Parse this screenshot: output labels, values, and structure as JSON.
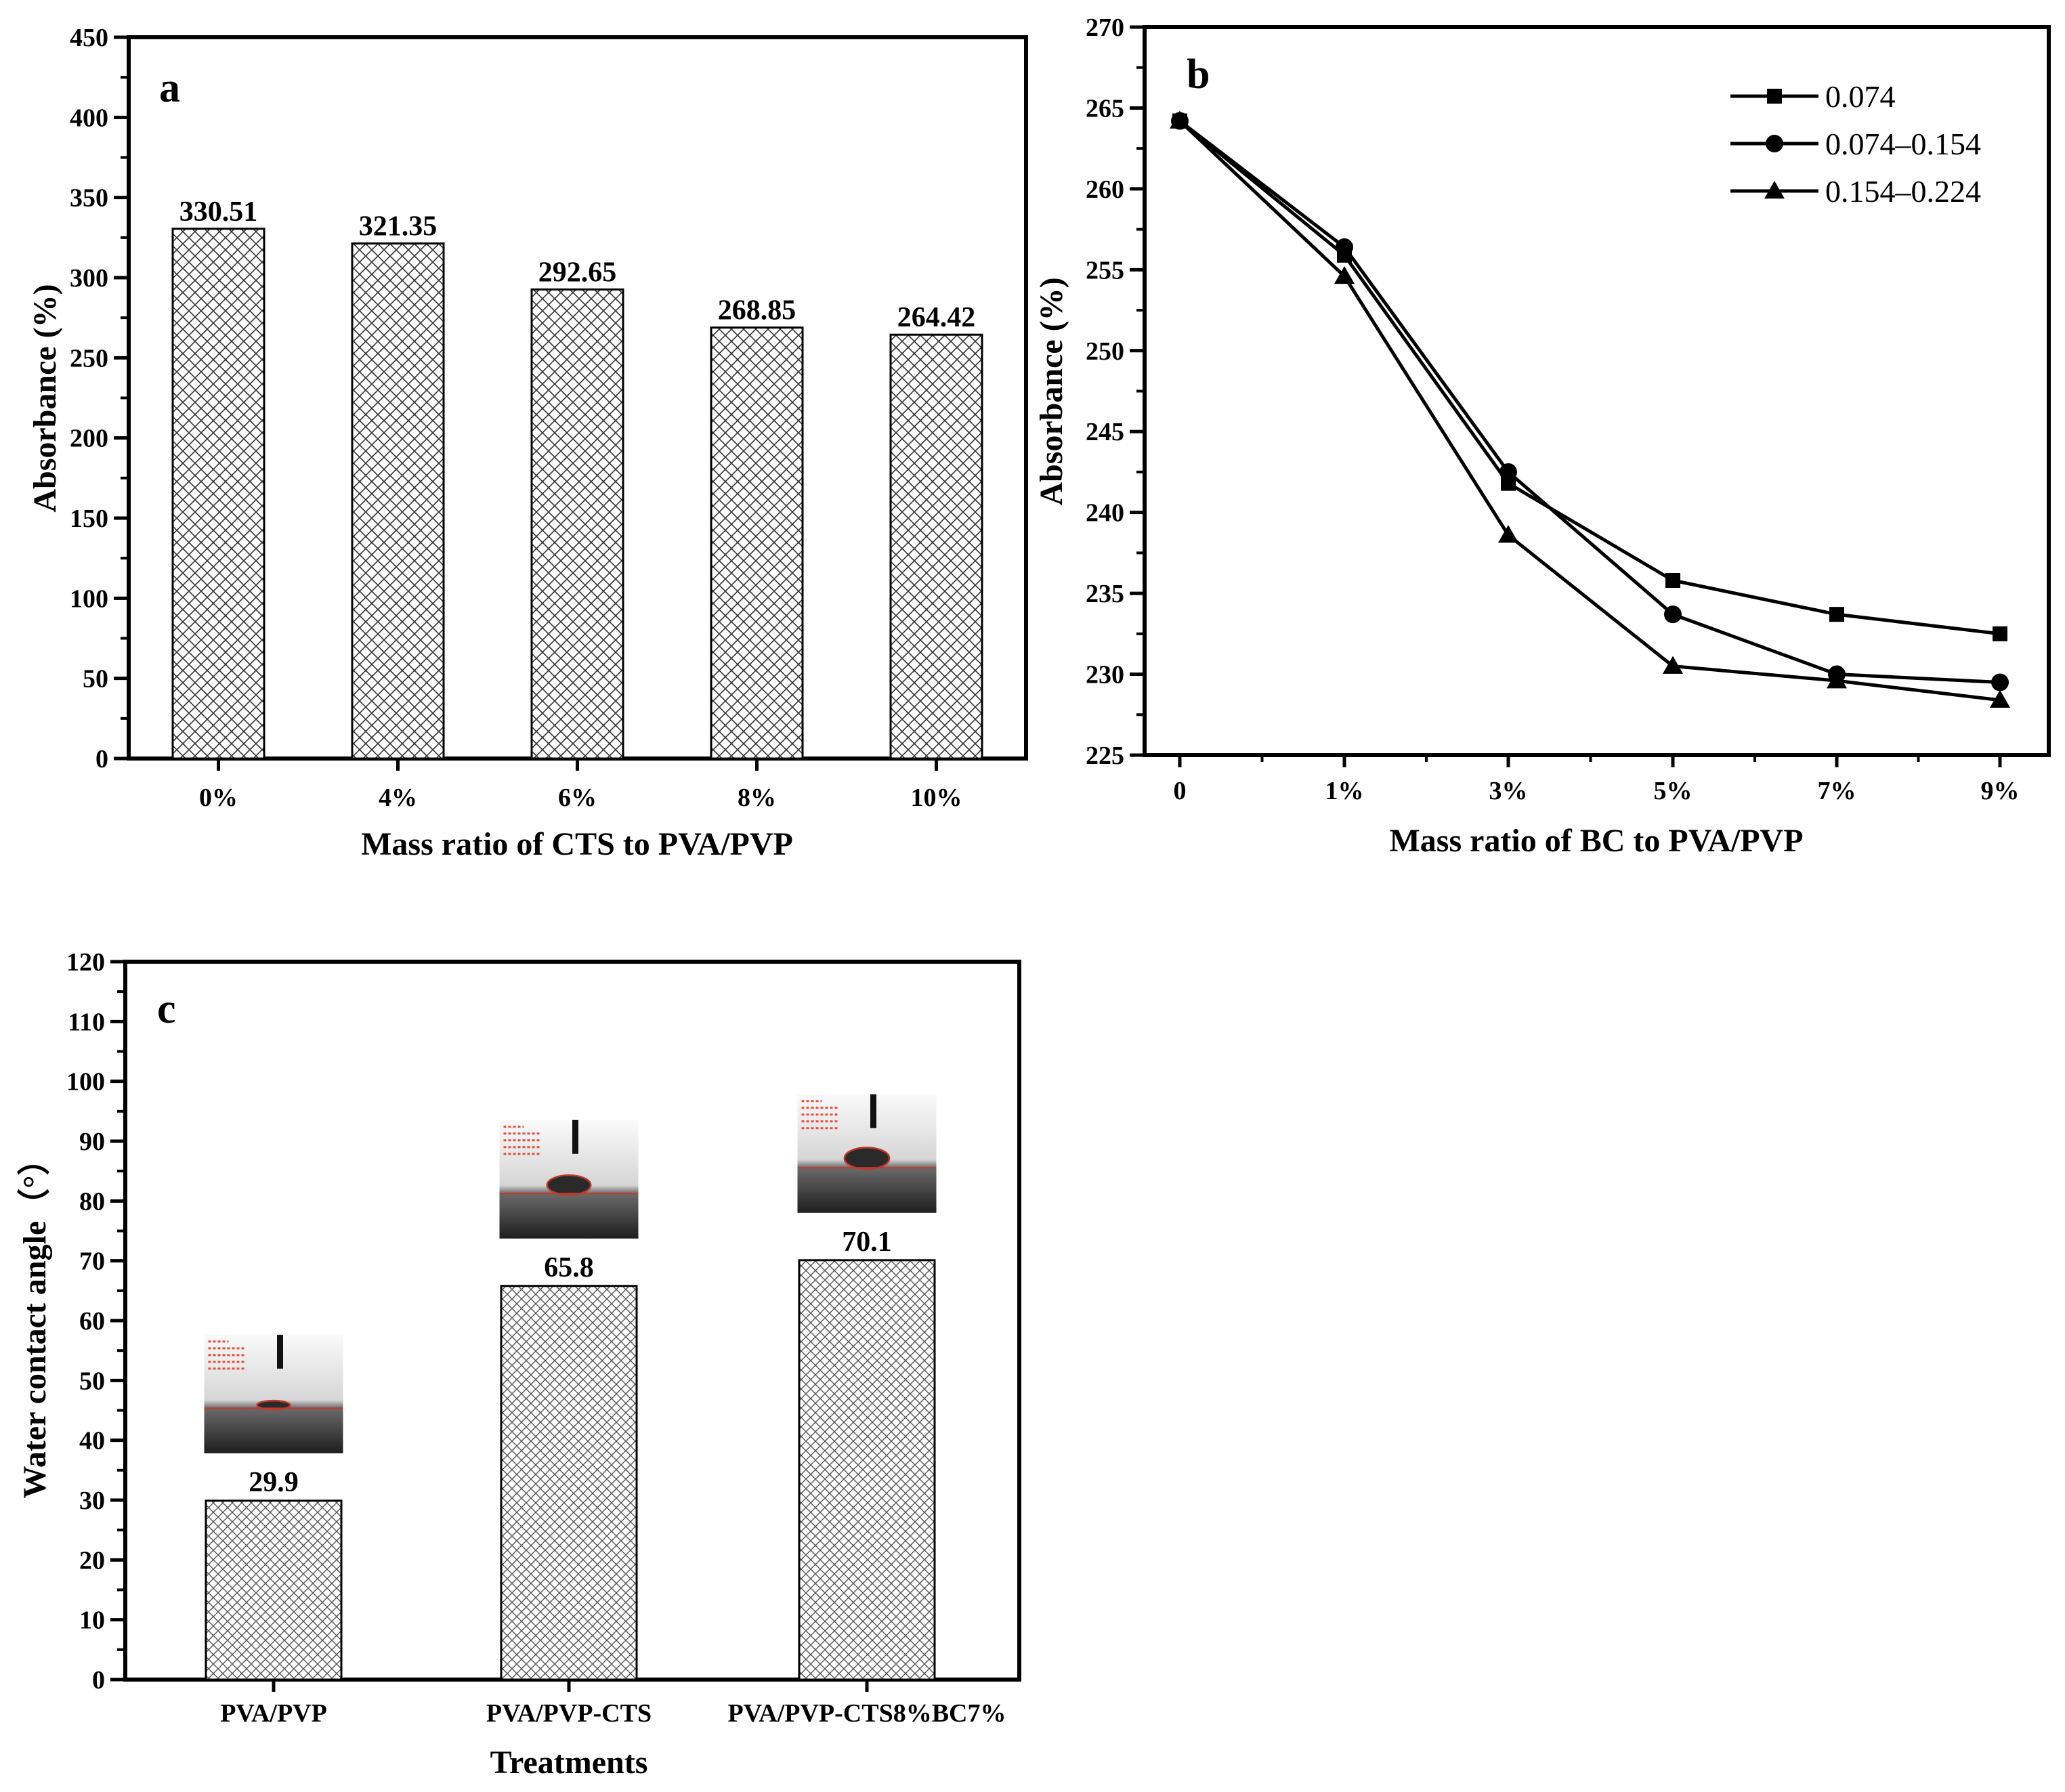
{
  "chart_data": [
    {
      "id": "a",
      "type": "bar",
      "panel_label": "a",
      "title": "",
      "xlabel": "Mass ratio of CTS to PVA/PVP",
      "ylabel": "Absorbance (%)",
      "ylim": [
        0,
        450
      ],
      "yticks": [
        0,
        50,
        100,
        150,
        200,
        250,
        300,
        350,
        400,
        450
      ],
      "categories": [
        "0%",
        "4%",
        "6%",
        "8%",
        "10%"
      ],
      "values": [
        330.51,
        321.35,
        292.65,
        268.85,
        264.42
      ],
      "data_labels": [
        "330.51",
        "321.35",
        "292.65",
        "268.85",
        "264.42"
      ],
      "bar_pattern": "crosshatch"
    },
    {
      "id": "b",
      "type": "line",
      "panel_label": "b",
      "title": "",
      "xlabel": "Mass ratio of BC to PVA/PVP",
      "ylabel": "Absorbance (%)",
      "ylim": [
        225,
        270
      ],
      "yticks": [
        225,
        230,
        235,
        240,
        245,
        250,
        255,
        260,
        265,
        270
      ],
      "categories": [
        "0",
        "1%",
        "3%",
        "5%",
        "7%",
        "9%"
      ],
      "legend_position": "top-right",
      "series": [
        {
          "name": "0.074",
          "marker": "square",
          "values": [
            264.2,
            255.9,
            241.8,
            235.8,
            233.7,
            232.5
          ]
        },
        {
          "name": "0.074–0.154",
          "marker": "circle",
          "values": [
            264.2,
            256.4,
            242.5,
            233.7,
            230.0,
            229.5
          ]
        },
        {
          "name": "0.154–0.224",
          "marker": "triangle",
          "values": [
            264.2,
            254.6,
            238.6,
            230.5,
            229.6,
            228.4
          ]
        }
      ]
    },
    {
      "id": "c",
      "type": "bar",
      "panel_label": "c",
      "title": "",
      "xlabel": "Treatments",
      "ylabel": "Water contact angle（°）",
      "ylim": [
        0,
        120
      ],
      "yticks": [
        0,
        10,
        20,
        30,
        40,
        50,
        60,
        70,
        80,
        90,
        100,
        110,
        120
      ],
      "categories": [
        "PVA/PVP",
        "PVA/PVP-CTS",
        "PVA/PVP-CTS8%BC7%"
      ],
      "values": [
        29.9,
        65.8,
        70.1
      ],
      "data_labels": [
        "29.9",
        "65.8",
        "70.1"
      ],
      "bar_pattern": "crosshatch",
      "inset_images": [
        "droplet-photo-1",
        "droplet-photo-2",
        "droplet-photo-3"
      ]
    }
  ]
}
